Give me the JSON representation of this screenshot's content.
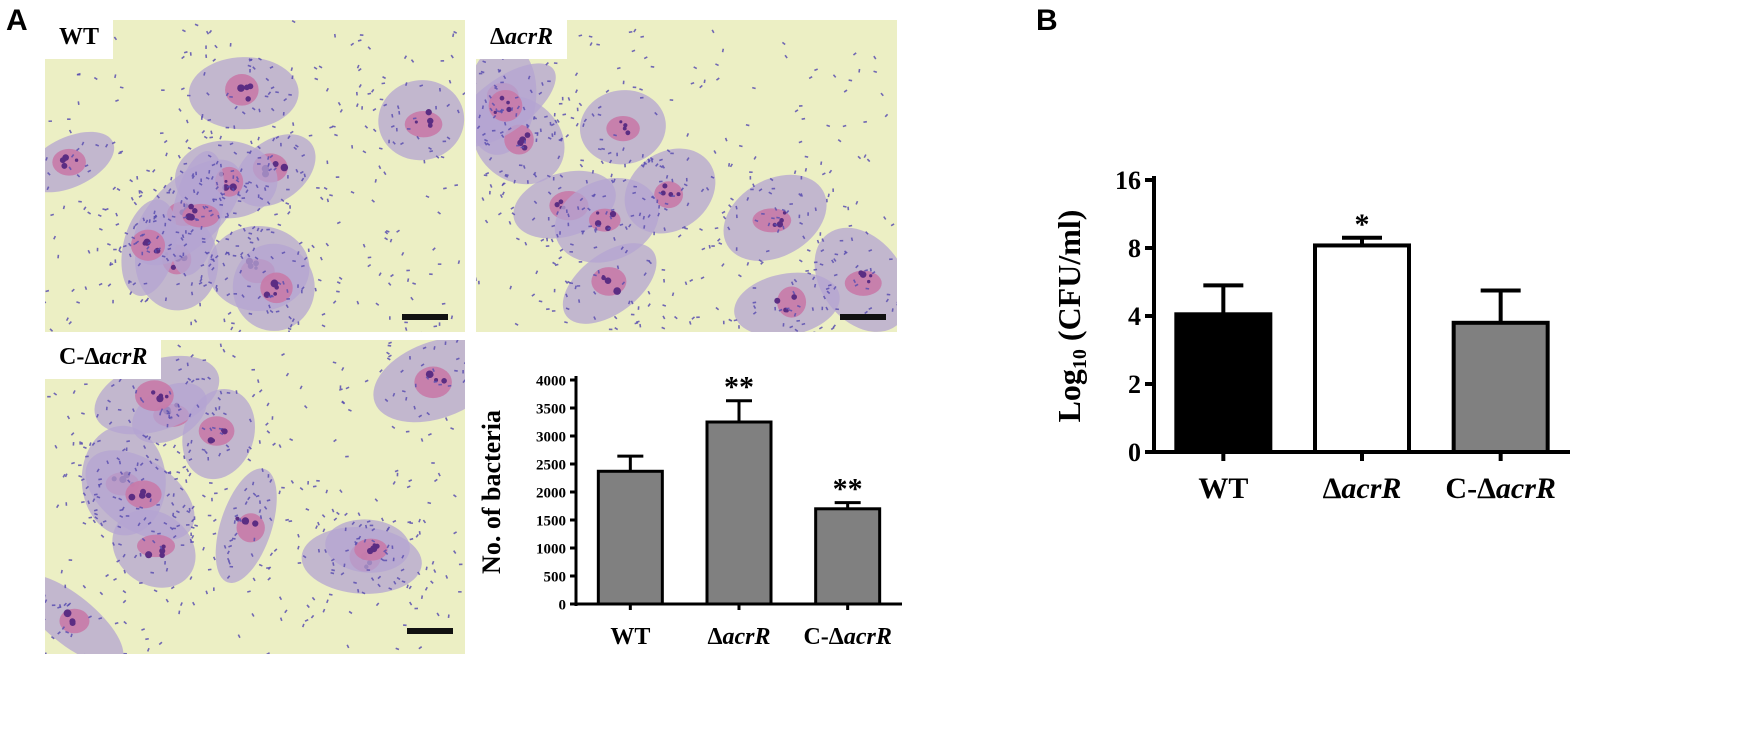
{
  "panel_letters": {
    "a": "A",
    "b": "B"
  },
  "micrographs": [
    {
      "label_prefix": "",
      "label_italic": "WT",
      "style": "plain"
    },
    {
      "label_prefix": "Δ",
      "label_italic": "acrR",
      "style": "italic"
    },
    {
      "label_prefix": "C-Δ",
      "label_italic": "acrR",
      "style": "italic"
    }
  ],
  "colors": {
    "background_field": "#ecefc4",
    "cell_cytoplasm": "#b4a4d2",
    "cell_nucleus": "#c87aa8",
    "bacteria": "#5a4fb0",
    "bar_black": "#000000",
    "bar_white": "#ffffff",
    "bar_gray": "#808080"
  },
  "chart_data": [
    {
      "type": "bar",
      "panel": "A",
      "ylabel": "No. of bacteria",
      "categories": [
        "WT",
        "ΔacrR",
        "C-ΔacrR"
      ],
      "category_labels": [
        {
          "prefix": "",
          "italic": "WT",
          "style": "plain"
        },
        {
          "prefix": "Δ",
          "italic": "acrR",
          "style": "italic"
        },
        {
          "prefix": "C-Δ",
          "italic": "acrR",
          "style": "italic"
        }
      ],
      "values": [
        2370,
        3250,
        1700
      ],
      "errors": [
        270,
        380,
        110
      ],
      "significance": [
        "",
        "**",
        "**"
      ],
      "bar_colors": [
        "#808080",
        "#808080",
        "#808080"
      ],
      "ylim": [
        0,
        4000
      ],
      "yticks": [
        "0",
        "500",
        "1000",
        "1500",
        "2000",
        "2500",
        "3000",
        "3500",
        "4000"
      ],
      "grid": false
    },
    {
      "type": "bar",
      "panel": "B",
      "ylabel_main": "Log",
      "ylabel_sub": "10",
      "ylabel_rest": " (CFU/ml)",
      "categories": [
        "WT",
        "ΔacrR",
        "C-ΔacrR"
      ],
      "category_labels": [
        {
          "prefix": "",
          "italic": "WT",
          "style": "plain"
        },
        {
          "prefix": "Δ",
          "italic": "acrR",
          "style": "italic"
        },
        {
          "prefix": "C-Δ",
          "italic": "acrR",
          "style": "italic"
        }
      ],
      "values": [
        4.1,
        8.3,
        3.8
      ],
      "errors": [
        1.7,
        0.9,
        1.7
      ],
      "significance": [
        "",
        "*",
        ""
      ],
      "bar_colors": [
        "#000000",
        "#ffffff",
        "#808080"
      ],
      "yticks": [
        "0",
        "2",
        "4",
        "8",
        "16"
      ],
      "ytick_values": [
        0,
        2,
        4,
        8,
        16
      ],
      "grid": false
    }
  ]
}
